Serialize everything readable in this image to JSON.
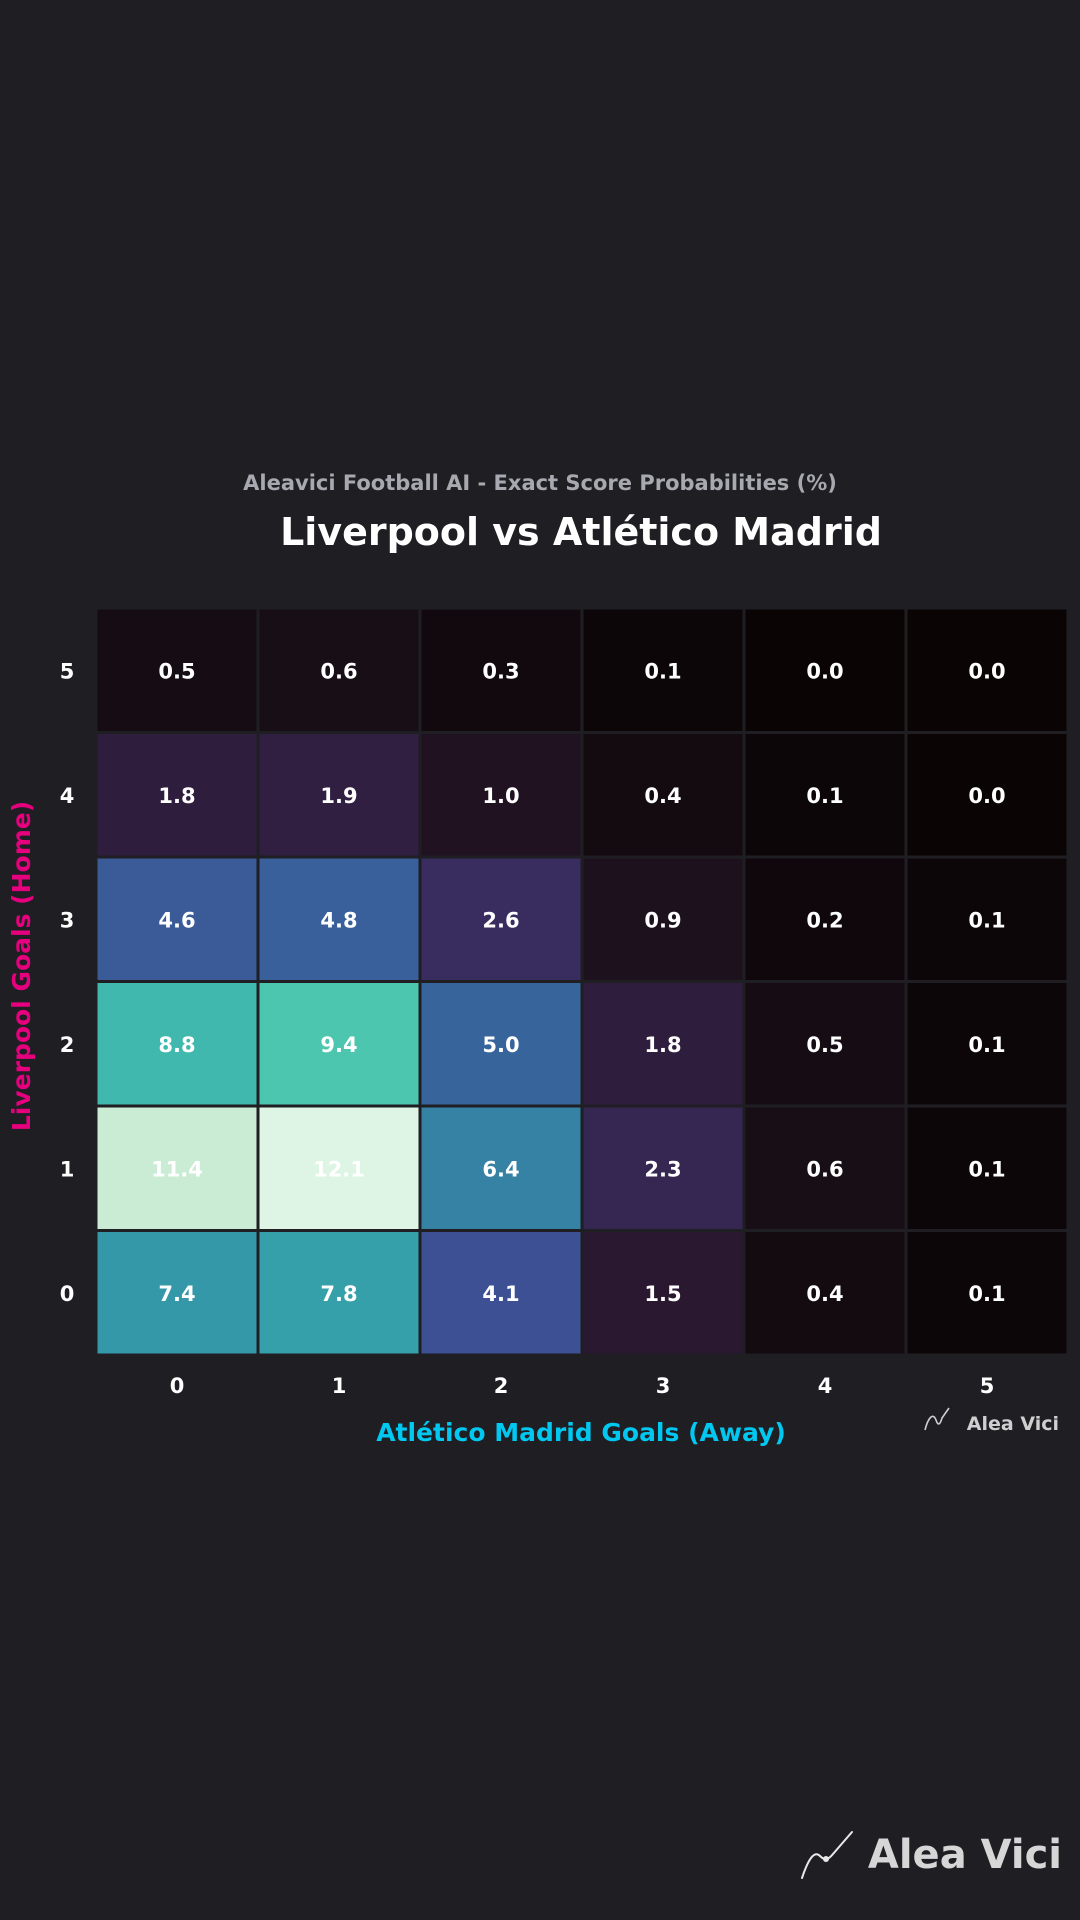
{
  "chart_data": {
    "type": "heatmap",
    "subtitle": "Aleavici Football AI - Exact Score Probabilities (%)",
    "title": "Liverpool vs Atlético Madrid",
    "xlabel": "Atlético Madrid Goals (Away)",
    "ylabel": "Liverpool Goals (Home)",
    "x_categories": [
      "0",
      "1",
      "2",
      "3",
      "4",
      "5"
    ],
    "y_categories": [
      "0",
      "1",
      "2",
      "3",
      "4",
      "5"
    ],
    "values": [
      [
        7.4,
        7.8,
        4.1,
        1.5,
        0.4,
        0.1
      ],
      [
        11.4,
        12.1,
        6.4,
        2.3,
        0.6,
        0.1
      ],
      [
        8.8,
        9.4,
        5.0,
        1.8,
        0.5,
        0.1
      ],
      [
        4.6,
        4.8,
        2.6,
        0.9,
        0.2,
        0.1
      ],
      [
        1.8,
        1.9,
        1.0,
        0.4,
        0.1,
        0.0
      ],
      [
        0.5,
        0.6,
        0.3,
        0.1,
        0.0,
        0.0
      ]
    ],
    "values_note_rows": "rows indexed by home goals 0..5",
    "colormap": "mako",
    "vmin": 0,
    "vmax": 12.1,
    "grid": false,
    "colors": {
      "background": "#1e1e23",
      "title": "#ffffff",
      "subtitle": "#a8a8b0",
      "xlabel": "#00c8f0",
      "ylabel": "#e6007e",
      "tick": "#ffffff",
      "cell_border": "#1e1e23"
    }
  },
  "watermark_small": "Alea Vici",
  "brand": {
    "logo_text": "Alea Vici",
    "icon": "brush-swoosh-icon"
  }
}
